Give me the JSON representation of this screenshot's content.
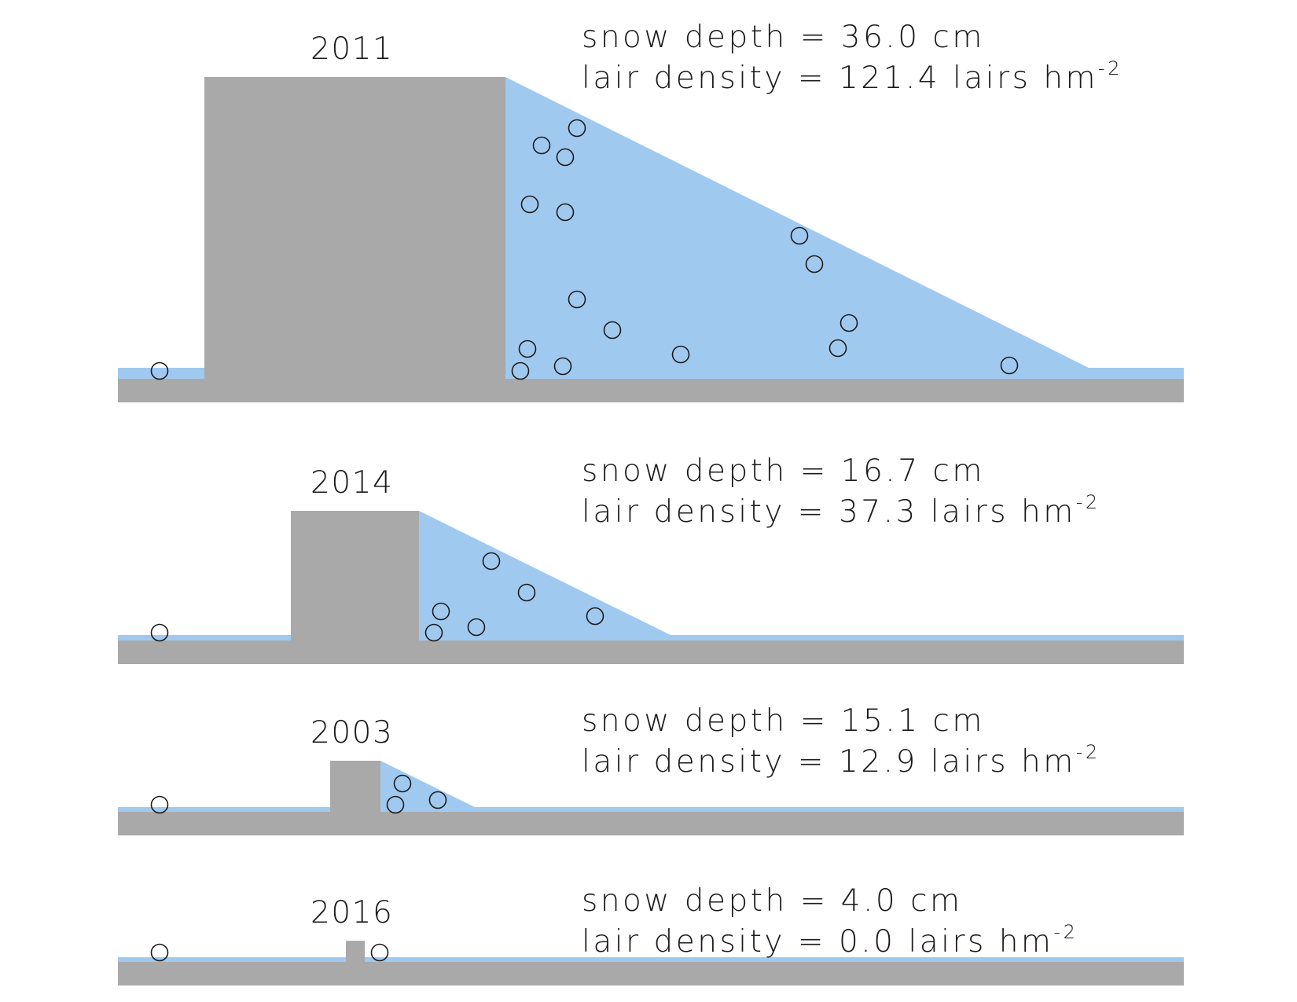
{
  "colors": {
    "ground": "#a9a9a9",
    "snow": "#a0c9ef",
    "text": "#1a1a1a",
    "lair_stroke": "#1a1a1a"
  },
  "panels": [
    {
      "year": "2011",
      "depth_label": "snow depth = 36.0 cm",
      "density_label": "lair density = 121.4 lairs hm",
      "unit_exponent": "-2"
    },
    {
      "year": "2014",
      "depth_label": "snow depth = 16.7 cm",
      "density_label": "lair density = 37.3 lairs hm",
      "unit_exponent": "-2"
    },
    {
      "year": "2003",
      "depth_label": "snow depth = 15.1 cm",
      "density_label": "lair density = 12.9 lairs hm",
      "unit_exponent": "-2"
    },
    {
      "year": "2016",
      "depth_label": "snow depth = 4.0 cm",
      "density_label": "lair density = 0.0 lairs hm",
      "unit_exponent": "-2"
    }
  ]
}
